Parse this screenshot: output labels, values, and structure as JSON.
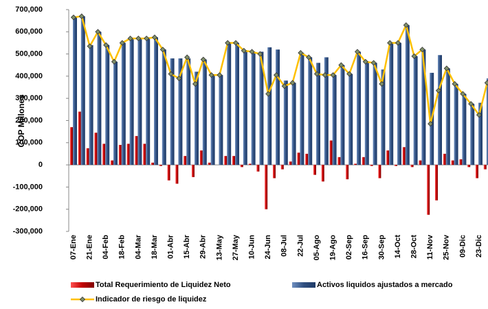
{
  "chart_data": {
    "type": "bar_line",
    "y_label": "COP Millones",
    "categories": [
      "07-Ene",
      null,
      "21-Ene",
      null,
      "04-Feb",
      null,
      "18-Feb",
      null,
      "04-Mar",
      null,
      "18-Mar",
      null,
      "01-Abr",
      null,
      "15-Abr",
      null,
      "29-Abr",
      null,
      "13-May",
      null,
      "27-May",
      null,
      "10-Jun",
      null,
      "24-Jun",
      null,
      "08-Jul",
      null,
      "22-Jul",
      null,
      "05-Ago",
      null,
      "19-Ago",
      null,
      "02-Sep",
      null,
      "16-Sep",
      null,
      "30-Sep",
      null,
      "14-Oct",
      null,
      "28-Oct",
      null,
      "11-Nov",
      null,
      "25-Nov",
      null,
      "09-Dic",
      null,
      "23-Dic",
      null
    ],
    "series": [
      {
        "name": "Total Requerimiento de Liquidez Neto",
        "color": "#c00000",
        "kind": "bar",
        "values": [
          170000,
          240000,
          75000,
          145000,
          95000,
          20000,
          90000,
          95000,
          130000,
          95000,
          10000,
          -5000,
          -70000,
          -85000,
          40000,
          -55000,
          65000,
          10000,
          0,
          40000,
          40000,
          -10000,
          5000,
          -30000,
          -200000,
          -60000,
          -20000,
          15000,
          55000,
          50000,
          -45000,
          -75000,
          110000,
          35000,
          -65000,
          5000,
          35000,
          -5000,
          -60000,
          65000,
          -5000,
          80000,
          -10000,
          20000,
          -225000,
          -160000,
          50000,
          20000,
          25000,
          -10000,
          -60000,
          -20000
        ]
      },
      {
        "name": "Activos liquidos ajustados a mercado",
        "color": "#2f4f80",
        "kind": "bar",
        "values": [
          665000,
          670000,
          540000,
          600000,
          540000,
          465000,
          550000,
          570000,
          570000,
          570000,
          575000,
          520000,
          480000,
          480000,
          480000,
          420000,
          475000,
          405000,
          405000,
          550000,
          550000,
          515000,
          510000,
          510000,
          530000,
          520000,
          380000,
          370000,
          505000,
          485000,
          460000,
          485000,
          405000,
          450000,
          410000,
          510000,
          465000,
          460000,
          430000,
          550000,
          550000,
          630000,
          490000,
          520000,
          415000,
          495000,
          435000,
          365000,
          320000,
          275000,
          280000,
          390000
        ]
      },
      {
        "name": "Indicador de riesgo de liquidez",
        "color": "#ffc000",
        "kind": "line",
        "values": [
          665000,
          670000,
          535000,
          600000,
          540000,
          465000,
          550000,
          570000,
          570000,
          570000,
          575000,
          520000,
          410000,
          390000,
          485000,
          365000,
          475000,
          405000,
          405000,
          550000,
          550000,
          515000,
          510000,
          500000,
          320000,
          405000,
          355000,
          370000,
          505000,
          485000,
          410000,
          405000,
          405000,
          450000,
          410000,
          510000,
          465000,
          460000,
          365000,
          550000,
          550000,
          630000,
          490000,
          520000,
          185000,
          335000,
          435000,
          365000,
          320000,
          275000,
          225000,
          370000
        ]
      }
    ],
    "ylim": [
      -300000,
      700000
    ],
    "yticks": [
      {
        "value": -300000,
        "label": "-300,000"
      },
      {
        "value": -200000,
        "label": "-200,000"
      },
      {
        "value": -100000,
        "label": "-100,000"
      },
      0,
      {
        "value": 100000,
        "label": "100,000"
      },
      {
        "value": 200000,
        "label": "200,000"
      },
      {
        "value": 300000,
        "label": "300,000"
      },
      {
        "value": 400000,
        "label": "400,000"
      },
      {
        "value": 500000,
        "label": "500,000"
      },
      {
        "value": 600000,
        "label": "600,000"
      },
      {
        "value": 700000,
        "label": "700,000"
      }
    ],
    "grid": false
  }
}
